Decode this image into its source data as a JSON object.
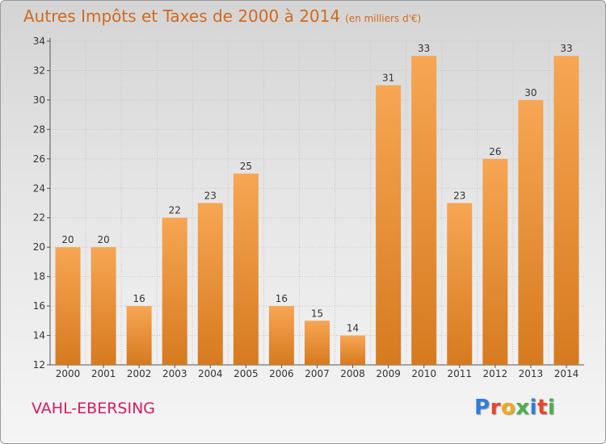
{
  "header": {
    "title": "Autres Impôts et Taxes de 2000 à 2014",
    "unit": "(en milliers d'€)"
  },
  "footer": {
    "city": "VAHL-EBERSING",
    "brand": "Proxiti"
  },
  "colors": {
    "title": "#d2691e",
    "city": "#d81b60",
    "bar_top": "#f7a653",
    "bar_bottom": "#d67a1f"
  },
  "chart_data": {
    "type": "bar",
    "categories": [
      "2000",
      "2001",
      "2002",
      "2003",
      "2004",
      "2005",
      "2006",
      "2007",
      "2008",
      "2009",
      "2010",
      "2011",
      "2012",
      "2013",
      "2014"
    ],
    "values": [
      20,
      20,
      16,
      22,
      23,
      25,
      16,
      15,
      14,
      31,
      33,
      23,
      26,
      30,
      33
    ],
    "ylim": [
      12,
      34
    ],
    "yticks": [
      12,
      14,
      16,
      18,
      20,
      22,
      24,
      26,
      28,
      30,
      32,
      34
    ],
    "title": "Autres Impôts et Taxes de 2000 à 2014",
    "ylabel": "",
    "xlabel": "",
    "grid": true,
    "data_labels": true
  }
}
